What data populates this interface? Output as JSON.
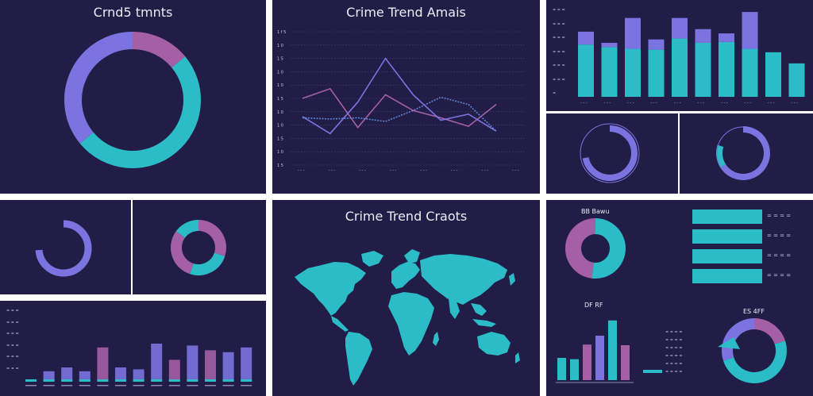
{
  "colors": {
    "background": "#221d46",
    "teal": "#2bbcc8",
    "purple": "#7b74e0",
    "mauve": "#a45fa6",
    "divider": "#ffffff"
  },
  "panel_a": {
    "title": "Crnd5 tmnts"
  },
  "panel_b": {
    "title": "Crime Trend Amais"
  },
  "panel_map": {
    "title": "Crime Trend Craots"
  },
  "panel_c": {
    "title": "BB Bawu"
  },
  "panel_d": {
    "title": "DF RF"
  },
  "panel_e": {
    "title": "ES 4FF"
  },
  "chart_data": [
    {
      "id": "donut-a",
      "type": "pie",
      "title": "Crnd5 tmnts",
      "slices": [
        {
          "value": 14,
          "color": "#a45fa6"
        },
        {
          "value": 50,
          "color": "#2bbcc8"
        },
        {
          "value": 36,
          "color": "#7b74e0"
        }
      ]
    },
    {
      "id": "line-b",
      "type": "line",
      "title": "Crime Trend Amais",
      "xlim": [
        0,
        9
      ],
      "ylim": [
        0,
        11
      ],
      "ytick_labels": [
        "1 f 5",
        "1 0",
        "1 5",
        "1 0",
        "1 0",
        "1 5",
        "1 0",
        "1 0",
        "1 5",
        "1 0",
        "1 5"
      ],
      "xtick_labels": [
        "- - -",
        "- - -",
        "- - -",
        "- - -",
        "- - -",
        "- - -",
        "- - -",
        "- - -"
      ],
      "series": [
        {
          "color": "#a45fa6",
          "x": [
            0,
            1,
            2,
            3,
            4,
            5,
            6,
            7
          ],
          "y": [
            5.5,
            6.3,
            3.1,
            5.8,
            4.5,
            3.9,
            3.2,
            5.0
          ]
        },
        {
          "color": "#7b74e0",
          "x": [
            0,
            1,
            2,
            3,
            4,
            5,
            6,
            7
          ],
          "y": [
            4.0,
            2.6,
            5.2,
            8.8,
            5.8,
            3.7,
            4.2,
            2.8
          ]
        },
        {
          "color": "#5f84d6",
          "dashed": true,
          "x": [
            0,
            1,
            2,
            3,
            4,
            5,
            6,
            7
          ],
          "y": [
            3.9,
            3.8,
            3.9,
            3.6,
            4.5,
            5.6,
            5.0,
            2.8
          ]
        }
      ]
    },
    {
      "id": "bars-c",
      "type": "bar",
      "ylim": [
        0,
        100
      ],
      "ytick_labels": [
        "= = =",
        "= = =",
        "= = =",
        "= = =",
        "= = =",
        "= = =",
        "="
      ],
      "xtick_labels": [
        "- - -",
        "- - -",
        "- - -",
        "- - -",
        "- - -",
        "- - -",
        "- - -",
        "- - -",
        "- - -",
        "- - -"
      ],
      "series": [
        {
          "name": "",
          "color": "#2bbcc8",
          "values": [
            61,
            58,
            56,
            55,
            68,
            63,
            64,
            56,
            52,
            39
          ]
        },
        {
          "name": "",
          "color": "#7b74e0",
          "values": [
            15,
            5,
            36,
            12,
            24,
            16,
            10,
            43,
            0,
            0
          ]
        }
      ]
    },
    {
      "id": "ring-d1",
      "type": "pie",
      "slices": [
        {
          "value": 72,
          "color": "#7b74e0"
        },
        {
          "value": 28,
          "color": "#221d46"
        }
      ]
    },
    {
      "id": "ring-d2",
      "type": "pie",
      "slices": [
        {
          "value": 66,
          "color": "#7b74e0"
        },
        {
          "value": 14,
          "color": "#2bbcc8"
        },
        {
          "value": 20,
          "color": "#221d46"
        }
      ]
    },
    {
      "id": "ring-e1",
      "type": "pie",
      "slices": [
        {
          "value": 74,
          "color": "#7b74e0"
        },
        {
          "value": 26,
          "color": "#221d46"
        }
      ]
    },
    {
      "id": "donut-e2",
      "type": "pie",
      "slices": [
        {
          "value": 30,
          "color": "#a45fa6"
        },
        {
          "value": 25,
          "color": "#2bbcc8"
        },
        {
          "value": 30,
          "color": "#a45fa6"
        },
        {
          "value": 15,
          "color": "#2bbcc8"
        }
      ]
    },
    {
      "id": "bars-f",
      "type": "bar",
      "ylim": [
        0,
        100
      ],
      "ytick_labels": [
        "= = =",
        "= = =",
        "= = =",
        "= = =",
        "= = =",
        "= = ="
      ],
      "series": [
        {
          "name": "",
          "color": "#2bbcc8",
          "values": [
            4,
            25,
            32,
            20,
            26,
            22,
            54,
            31,
            48,
            60,
            49,
            55,
            3
          ]
        },
        {
          "name": "",
          "color": "#7b74e0",
          "values": [
            0,
            0,
            0,
            0,
            0,
            0,
            0,
            0,
            0,
            0,
            0,
            0,
            0
          ]
        },
        {
          "name": "",
          "color": "#a45fa6",
          "values": [
            0,
            0,
            0,
            0,
            50,
            0,
            0,
            0,
            0,
            0,
            0,
            0,
            0
          ]
        }
      ]
    },
    {
      "id": "donut-g",
      "type": "pie",
      "title": "BB Bawu",
      "slices": [
        {
          "value": 52,
          "color": "#2bbcc8"
        },
        {
          "value": 48,
          "color": "#a45fa6"
        }
      ]
    },
    {
      "id": "bars-h",
      "type": "bar",
      "title": "DF RF",
      "categories": [
        "",
        "",
        "",
        "",
        "",
        ""
      ],
      "values": [
        35,
        33,
        56,
        70,
        94,
        55
      ],
      "colors": [
        "#2bbcc8",
        "#2bbcc8",
        "#a45fa6",
        "#7b74e0",
        "#2bbcc8",
        "#a45fa6"
      ],
      "ylim": [
        0,
        100
      ]
    },
    {
      "id": "donut-i",
      "type": "pie",
      "title": "ES 4FF",
      "slices": [
        {
          "value": 20,
          "color": "#a45fa6"
        },
        {
          "value": 50,
          "color": "#2bbcc8"
        },
        {
          "value": 30,
          "color": "#7b74e0"
        }
      ]
    }
  ],
  "table_g": {
    "rows": [
      "= = = =",
      "= = = =",
      "= = = =",
      "= = = ="
    ]
  },
  "legend_h": [
    "= = = =",
    "= = = =",
    "= = = =",
    "= = = =",
    "= = = =",
    "= = = ="
  ]
}
